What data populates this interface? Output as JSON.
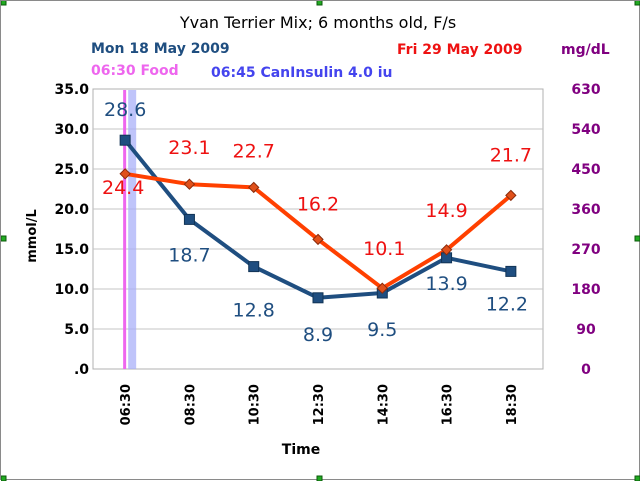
{
  "chart_data": {
    "type": "line",
    "title": "Yvan Terrier Mix; 6 months old, F/s",
    "xlabel": "Time",
    "ylabel": "mmol/L",
    "y2label": "mg/dL",
    "categories": [
      "06:30",
      "08:30",
      "10:30",
      "12:30",
      "14:30",
      "16:30",
      "18:30"
    ],
    "ylim": [
      0,
      35
    ],
    "yticks": [
      ".0",
      "5.0",
      "10.0",
      "15.0",
      "20.0",
      "25.0",
      "30.0",
      "35.0"
    ],
    "y2ticks": [
      "0",
      "90",
      "180",
      "270",
      "360",
      "450",
      "540",
      "630"
    ],
    "grid": true,
    "series": [
      {
        "name": "Mon 18 May 2009",
        "color": "#1f4e80",
        "marker": "square",
        "values": [
          28.6,
          18.7,
          12.8,
          8.9,
          9.5,
          13.9,
          12.2
        ],
        "labels": [
          "28.6",
          "18.7",
          "12.8",
          "8.9",
          "9.5",
          "13.9",
          "12.2"
        ]
      },
      {
        "name": "Fri 29 May 2009",
        "color": "#ff4000",
        "marker": "diamond",
        "values": [
          24.4,
          23.1,
          22.7,
          16.2,
          10.1,
          14.9,
          21.7
        ],
        "labels": [
          "24.4",
          "23.1",
          "22.7",
          "16.2",
          "10.1",
          "14.9",
          "21.7"
        ]
      }
    ],
    "annotations": [
      {
        "text": "06:30 Food",
        "color": "#ee66ee",
        "x": "06:30",
        "x_offset_minutes": 0
      },
      {
        "text": "06:45 CanInsulin 4.0 iu",
        "color": "#4444ee",
        "x": "06:30",
        "x_offset_minutes": 15
      }
    ]
  },
  "colors": {
    "series1": "#1f4e80",
    "series2": "#ff4000",
    "series2_labels": "#ee1111",
    "y2_axis": "#800080",
    "food_line": "#ee66ee",
    "insulin_line": "#aab0f8"
  }
}
